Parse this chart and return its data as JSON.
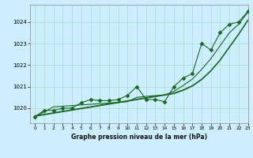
{
  "title": "Graphe pression niveau de la mer (hPa)",
  "bg_color": "#cceeff",
  "plot_bg_color": "#cceeff",
  "grid_color": "#aaddcc",
  "line_color": "#1a6622",
  "xlim": [
    -0.5,
    23
  ],
  "ylim": [
    1019.3,
    1024.8
  ],
  "yticks": [
    1020,
    1021,
    1022,
    1023,
    1024
  ],
  "xticks": [
    0,
    1,
    2,
    3,
    4,
    5,
    6,
    7,
    8,
    9,
    10,
    11,
    12,
    13,
    14,
    15,
    16,
    17,
    18,
    19,
    20,
    21,
    22,
    23
  ],
  "series_main": [
    1019.6,
    1019.9,
    1019.9,
    1020.0,
    1020.0,
    1020.25,
    1020.4,
    1020.35,
    1020.35,
    1020.4,
    1020.6,
    1021.0,
    1020.4,
    1020.4,
    1020.3,
    1021.0,
    1021.4,
    1021.6,
    1023.0,
    1022.7,
    1023.5,
    1023.9,
    1024.0,
    1024.5
  ],
  "series_smooth1": [
    1019.65,
    1019.72,
    1019.79,
    1019.86,
    1019.93,
    1020.0,
    1020.07,
    1020.14,
    1020.21,
    1020.28,
    1020.35,
    1020.42,
    1020.49,
    1020.56,
    1020.63,
    1020.7,
    1020.85,
    1021.05,
    1021.35,
    1021.75,
    1022.25,
    1022.85,
    1023.45,
    1024.1
  ],
  "series_smooth2": [
    1019.62,
    1019.69,
    1019.76,
    1019.83,
    1019.9,
    1019.97,
    1020.04,
    1020.11,
    1020.18,
    1020.25,
    1020.32,
    1020.39,
    1020.46,
    1020.53,
    1020.6,
    1020.67,
    1020.82,
    1021.02,
    1021.32,
    1021.72,
    1022.22,
    1022.82,
    1023.42,
    1024.07
  ],
  "series_linear1": [
    1019.6,
    1019.83,
    1020.06,
    1020.09,
    1020.12,
    1020.15,
    1020.18,
    1020.21,
    1020.24,
    1020.27,
    1020.3,
    1020.5,
    1020.55,
    1020.58,
    1020.61,
    1020.78,
    1021.05,
    1021.35,
    1021.8,
    1022.3,
    1022.9,
    1023.5,
    1023.9,
    1024.45
  ],
  "marker": "D",
  "marker_size": 2.5
}
